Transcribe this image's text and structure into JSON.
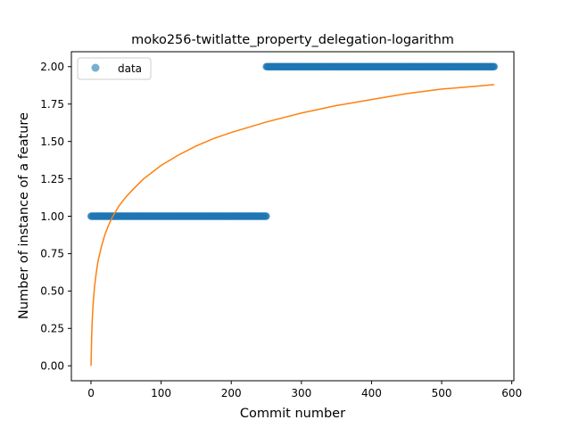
{
  "chart_data": {
    "type": "scatter",
    "title": "moko256-twitlatte_property_delegation-logarithm",
    "xlabel": "Commit number",
    "ylabel": "Number of instance of a feature",
    "xlim": [
      -28,
      603
    ],
    "ylim": [
      -0.1,
      2.1
    ],
    "xticks": [
      0,
      100,
      200,
      300,
      400,
      500,
      600
    ],
    "yticks": [
      0.0,
      0.25,
      0.5,
      0.75,
      1.0,
      1.25,
      1.5,
      1.75,
      2.0
    ],
    "xtick_labels": [
      "0",
      "100",
      "200",
      "300",
      "400",
      "500",
      "600"
    ],
    "ytick_labels": [
      "0.00",
      "0.25",
      "0.50",
      "0.75",
      "1.00",
      "1.25",
      "1.50",
      "1.75",
      "2.00"
    ],
    "legend": {
      "position": "top-left",
      "entries": [
        "data"
      ]
    },
    "grid": false,
    "series": [
      {
        "name": "data",
        "kind": "scatter",
        "color": "#1f77b4",
        "segments": [
          {
            "x_start": 0,
            "x_end": 250,
            "y": 1.0
          },
          {
            "x_start": 250,
            "x_end": 575,
            "y": 2.0
          }
        ]
      },
      {
        "kind": "line",
        "color": "#ff7f0e",
        "points": [
          [
            0,
            0.0
          ],
          [
            1,
            0.21
          ],
          [
            2,
            0.33
          ],
          [
            3,
            0.41
          ],
          [
            5,
            0.53
          ],
          [
            8,
            0.64
          ],
          [
            10,
            0.7
          ],
          [
            15,
            0.8
          ],
          [
            20,
            0.88
          ],
          [
            25,
            0.94
          ],
          [
            30,
            0.99
          ],
          [
            40,
            1.07
          ],
          [
            50,
            1.13
          ],
          [
            60,
            1.18
          ],
          [
            75,
            1.25
          ],
          [
            100,
            1.34
          ],
          [
            125,
            1.41
          ],
          [
            150,
            1.47
          ],
          [
            175,
            1.52
          ],
          [
            200,
            1.56
          ],
          [
            250,
            1.63
          ],
          [
            300,
            1.69
          ],
          [
            350,
            1.74
          ],
          [
            400,
            1.78
          ],
          [
            450,
            1.82
          ],
          [
            500,
            1.85
          ],
          [
            550,
            1.87
          ],
          [
            575,
            1.88
          ]
        ]
      }
    ]
  }
}
